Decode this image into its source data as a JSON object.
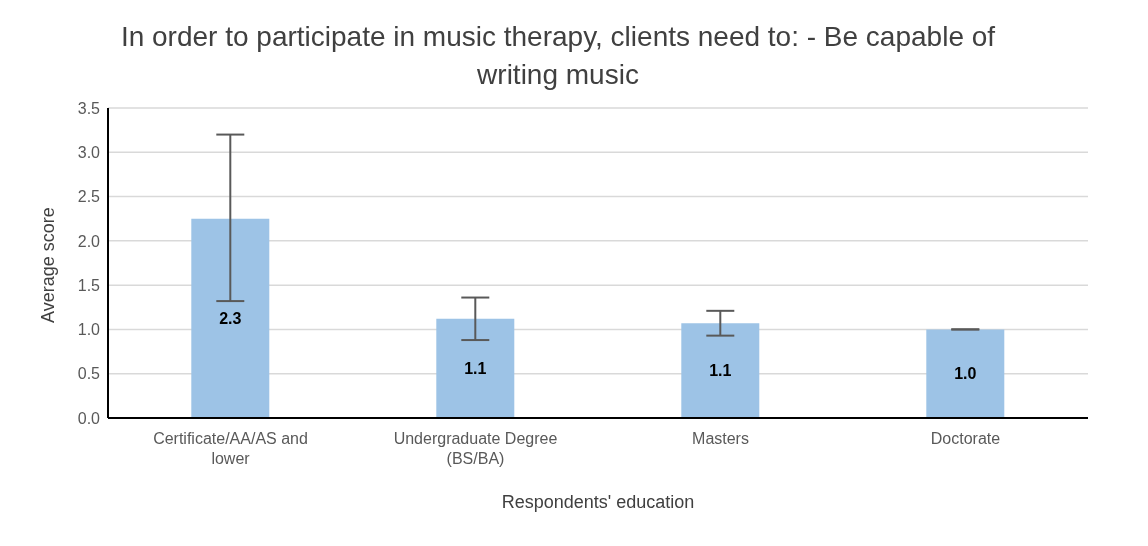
{
  "chart_data": {
    "type": "bar",
    "title": "In order to participate in music therapy, clients need to: - Be capable of writing music",
    "xlabel": "Respondents' education",
    "ylabel": "Average score",
    "categories": [
      "Certificate/AA/AS and lower",
      "Undergraduate Degree (BS/BA)",
      "Masters",
      "Doctorate"
    ],
    "values": [
      2.25,
      1.12,
      1.07,
      1.0
    ],
    "value_labels": [
      "2.3",
      "1.1",
      "1.1",
      "1.0"
    ],
    "errors": [
      [
        1.32,
        3.2
      ],
      [
        0.88,
        1.36
      ],
      [
        0.93,
        1.21
      ],
      [
        1.0,
        1.0
      ]
    ],
    "color": "#9dc3e6",
    "ylim": [
      0,
      3.5
    ],
    "yticks": [
      {
        "value": 0,
        "label": "0.0"
      },
      0.5,
      {
        "value": 1,
        "label": "1.0"
      },
      1.5,
      {
        "value": 2,
        "label": "2.0"
      },
      2.5,
      {
        "value": 3,
        "label": "3.0"
      },
      3.5
    ],
    "grid": "y",
    "legend": false
  }
}
